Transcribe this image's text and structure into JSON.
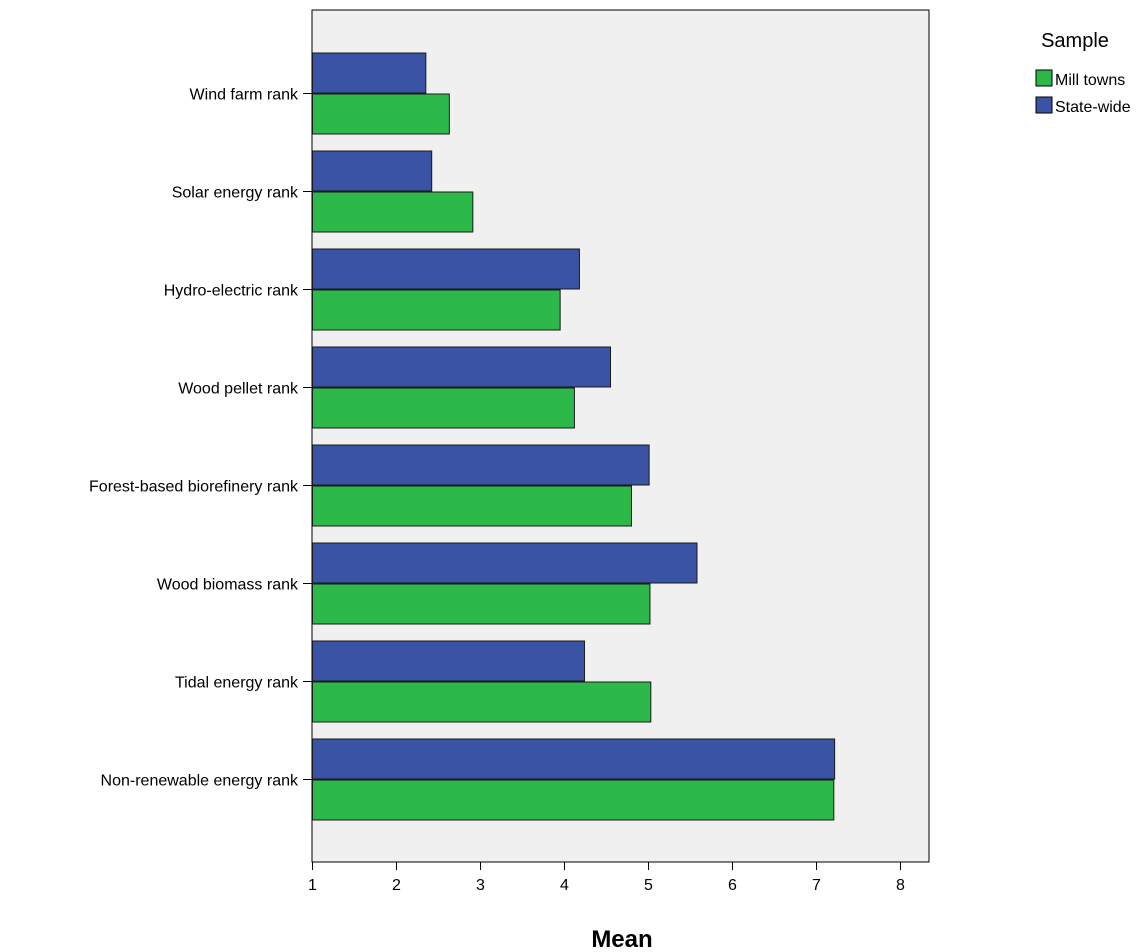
{
  "chart_data": {
    "type": "bar",
    "orientation": "horizontal",
    "categories": [
      "Wind farm rank",
      "Solar energy rank",
      "Hydro-electric rank",
      "Wood pellet rank",
      "Forest-based biorefinery rank",
      "Wood biomass rank",
      "Tidal energy rank",
      "Non-renewable energy rank"
    ],
    "series": [
      {
        "name": "State-wide",
        "color": "#3a53a4",
        "values": [
          2.35,
          2.42,
          4.18,
          4.55,
          5.01,
          5.58,
          4.24,
          7.22
        ]
      },
      {
        "name": "Mill towns",
        "color": "#2db84a",
        "values": [
          2.63,
          2.91,
          3.95,
          4.12,
          4.8,
          5.02,
          5.03,
          7.21
        ]
      }
    ],
    "xlabel": "Mean",
    "xlim": [
      1,
      8.35
    ],
    "xticks": [
      "1",
      "2",
      "3",
      "4",
      "5",
      "6",
      "7",
      "8"
    ],
    "legend": {
      "title": "Sample",
      "position": "top-right",
      "entries": [
        "Mill towns",
        "State-wide"
      ]
    },
    "grid": false,
    "plot_background": "#f0f0f0"
  }
}
